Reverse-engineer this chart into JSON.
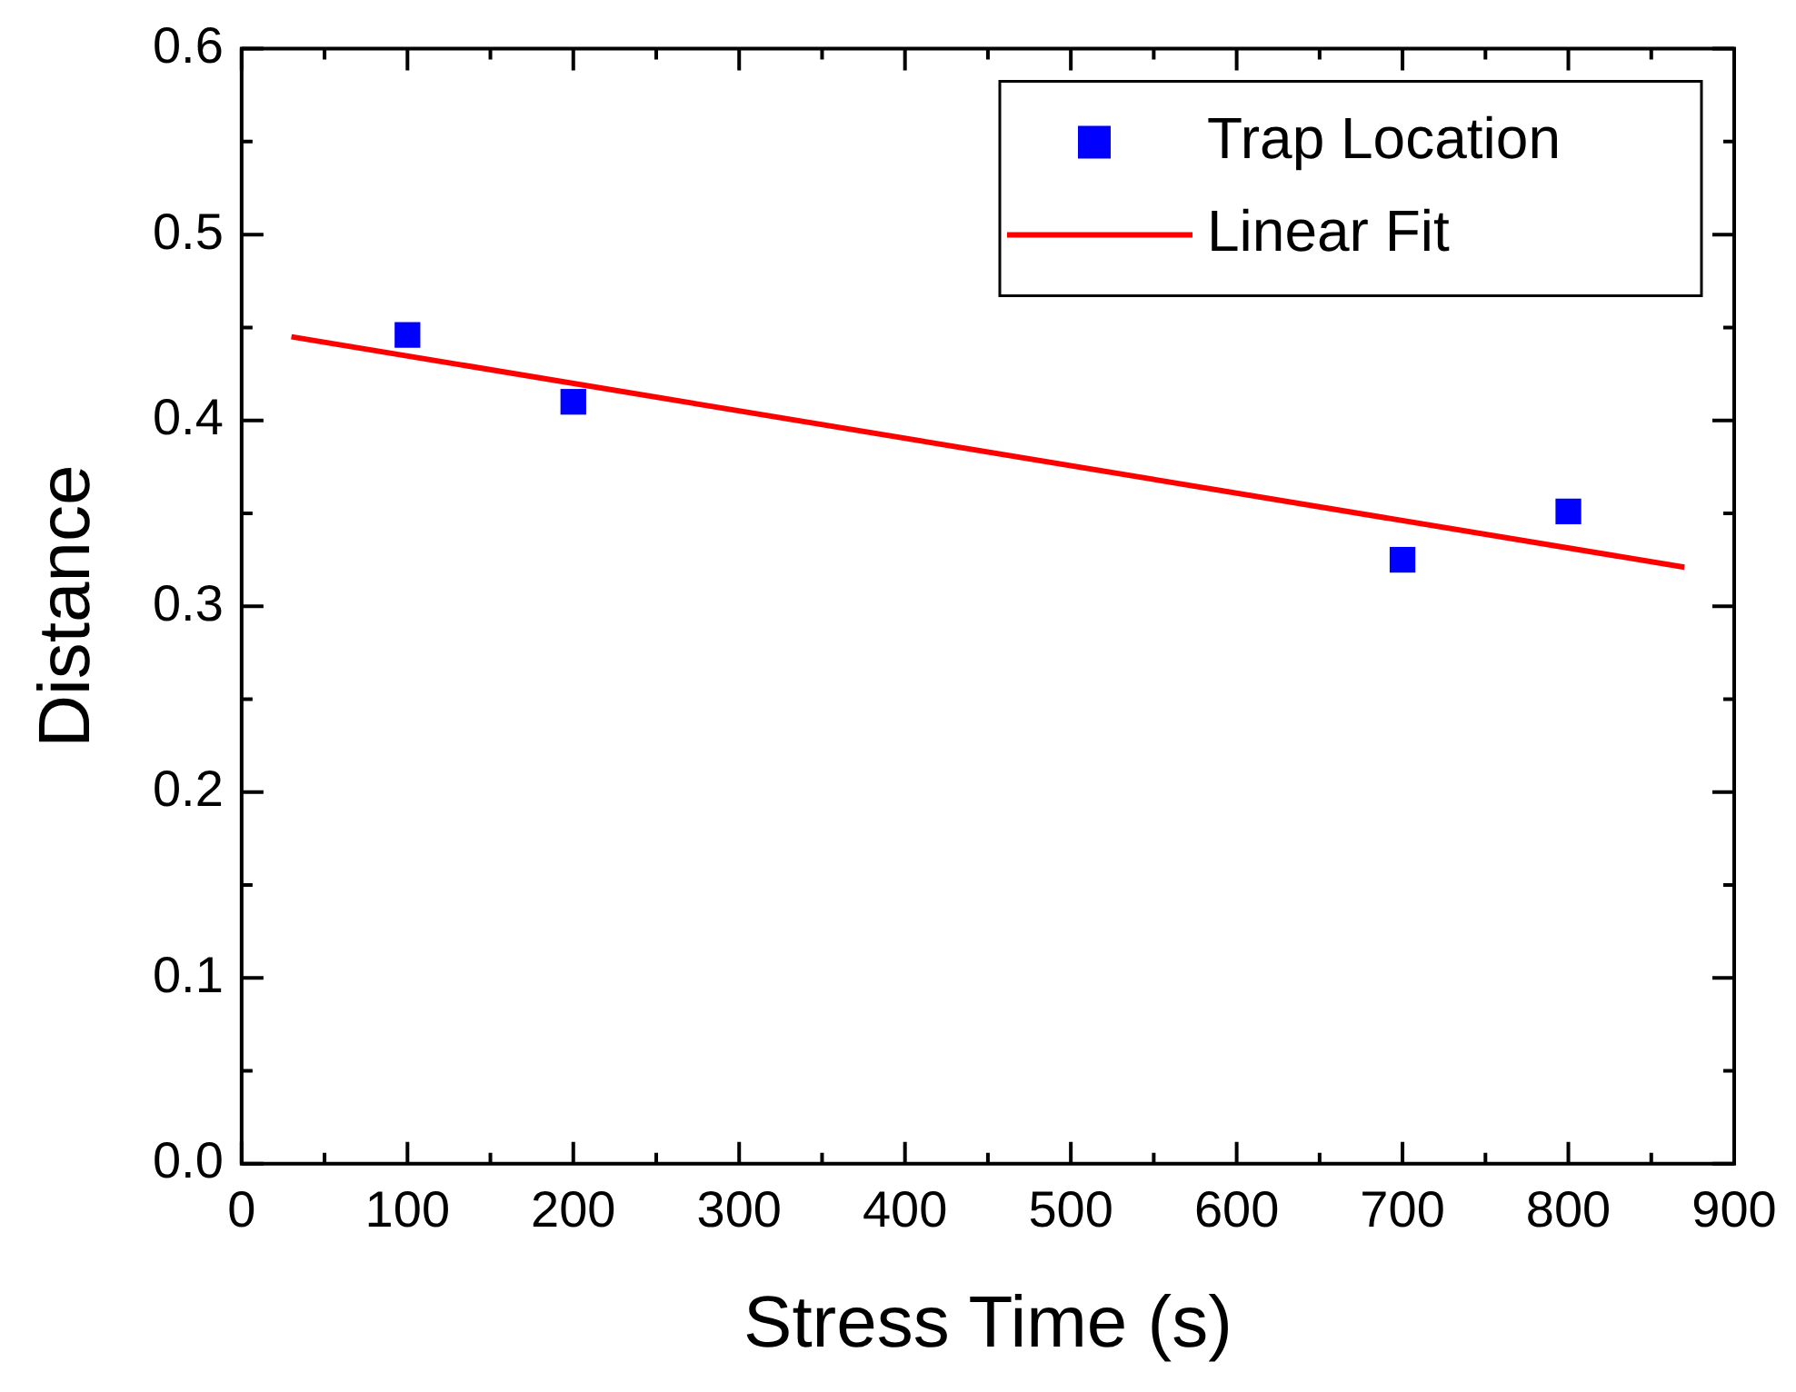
{
  "chart_data": {
    "type": "scatter",
    "xlabel": "Stress Time (s)",
    "ylabel": "Distance",
    "xlim": [
      0,
      900
    ],
    "xticks": [
      0,
      100,
      200,
      300,
      400,
      500,
      600,
      700,
      800,
      900
    ],
    "ylim": [
      0,
      0.6
    ],
    "yticks": [
      {
        "value": 0,
        "label": "0.0"
      },
      0.1,
      0.2,
      0.3,
      0.4,
      0.5,
      0.6
    ],
    "grid": false,
    "legend": "top right",
    "series": [
      {
        "name": "Trap Location",
        "type": "scatter",
        "marker": "square",
        "color": "#0000ff",
        "x": [
          100,
          200,
          700,
          800
        ],
        "values": [
          0.446,
          0.41,
          0.325,
          0.351
        ]
      },
      {
        "name": "Linear Fit",
        "type": "line",
        "color": "#ff0000",
        "line_style": "solid",
        "x": [
          30,
          870
        ],
        "values": [
          0.445,
          0.321
        ]
      }
    ]
  }
}
